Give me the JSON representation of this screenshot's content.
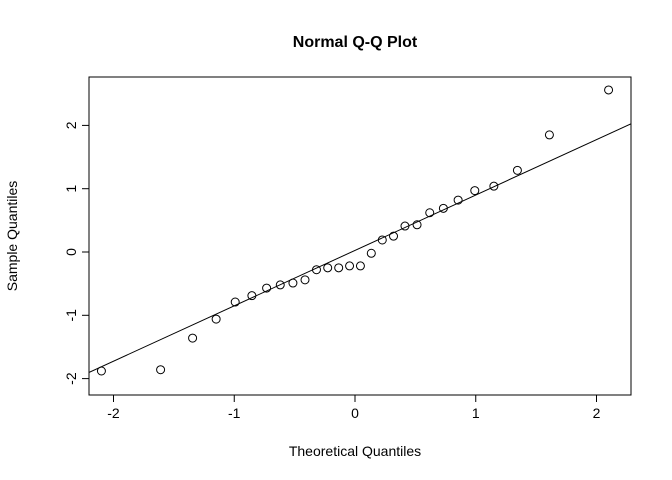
{
  "chart_data": {
    "type": "scatter",
    "title": "Normal Q-Q Plot",
    "xlabel": "Theoretical Quantiles",
    "ylabel": "Sample Quantiles",
    "xlim": [
      -2.28,
      2.28
    ],
    "ylim": [
      -2.05,
      2.7
    ],
    "xticks": [
      -2,
      -1,
      0,
      1,
      2
    ],
    "yticks": [
      -2,
      -1,
      0,
      1,
      2
    ],
    "xtick_labels": [
      "-2",
      "-1",
      "0",
      "1",
      "2"
    ],
    "ytick_labels": [
      "-2",
      "-1",
      "0",
      "1",
      "2"
    ],
    "grid": false,
    "marker": "open-circle",
    "points": [
      [
        -2.1,
        -1.88
      ],
      [
        -1.61,
        -1.86
      ],
      [
        -1.345,
        -1.36
      ],
      [
        -1.15,
        -1.06
      ],
      [
        -0.992,
        -0.79
      ],
      [
        -0.854,
        -0.69
      ],
      [
        -0.732,
        -0.57
      ],
      [
        -0.619,
        -0.52
      ],
      [
        -0.514,
        -0.49
      ],
      [
        -0.414,
        -0.44
      ],
      [
        -0.319,
        -0.28
      ],
      [
        -0.226,
        -0.25
      ],
      [
        -0.135,
        -0.25
      ],
      [
        -0.045,
        -0.22
      ],
      [
        0.045,
        -0.22
      ],
      [
        0.135,
        -0.02
      ],
      [
        0.226,
        0.19
      ],
      [
        0.319,
        0.25
      ],
      [
        0.414,
        0.41
      ],
      [
        0.514,
        0.43
      ],
      [
        0.619,
        0.62
      ],
      [
        0.732,
        0.69
      ],
      [
        0.854,
        0.82
      ],
      [
        0.992,
        0.97
      ],
      [
        1.15,
        1.04
      ],
      [
        1.345,
        1.29
      ],
      [
        1.61,
        1.85
      ],
      [
        2.1,
        2.56
      ]
    ],
    "reference_line": {
      "intercept": 0.025,
      "slope": 0.875
    }
  }
}
